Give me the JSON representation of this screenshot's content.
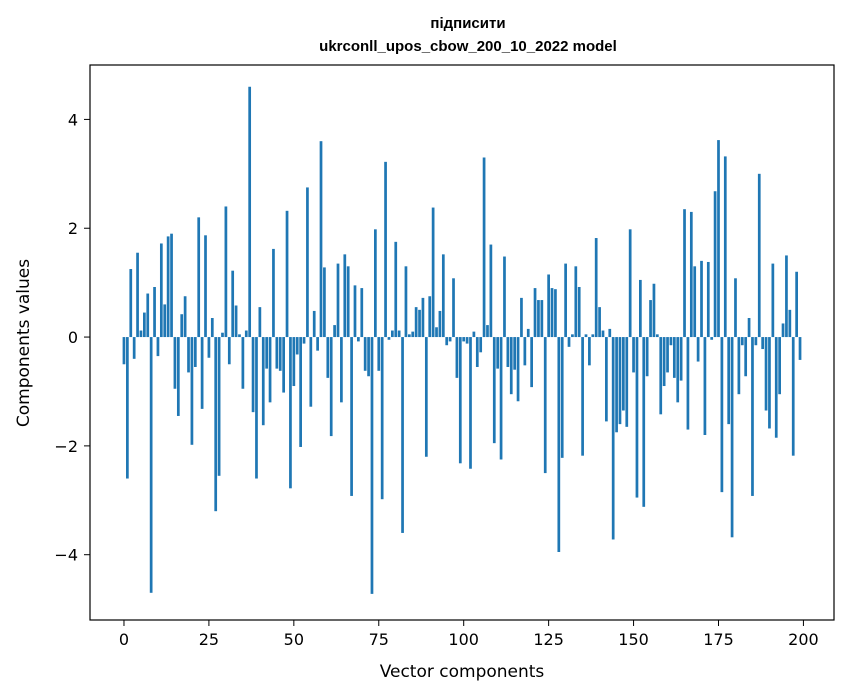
{
  "chart_data": {
    "type": "bar",
    "title_lines": [
      "підписити",
      "ukrconll_upos_cbow_200_10_2022 model"
    ],
    "xlabel": "Vector components",
    "ylabel": "Components values",
    "xlim": [
      -10,
      209
    ],
    "ylim": [
      -5.2,
      5.0
    ],
    "xticks": [
      0,
      25,
      50,
      75,
      100,
      125,
      150,
      175,
      200
    ],
    "xtick_labels": [
      "0",
      "25",
      "50",
      "75",
      "100",
      "125",
      "150",
      "175",
      "200"
    ],
    "yticks": [
      -4,
      -2,
      0,
      2,
      4
    ],
    "ytick_labels": [
      "−4",
      "−2",
      "0",
      "2",
      "4"
    ],
    "bar_color": "#1f77b4",
    "grid": false,
    "x": [
      0,
      1,
      2,
      3,
      4,
      5,
      6,
      7,
      8,
      9,
      10,
      11,
      12,
      13,
      14,
      15,
      16,
      17,
      18,
      19,
      20,
      21,
      22,
      23,
      24,
      25,
      26,
      27,
      28,
      29,
      30,
      31,
      32,
      33,
      34,
      35,
      36,
      37,
      38,
      39,
      40,
      41,
      42,
      43,
      44,
      45,
      46,
      47,
      48,
      49,
      50,
      51,
      52,
      53,
      54,
      55,
      56,
      57,
      58,
      59,
      60,
      61,
      62,
      63,
      64,
      65,
      66,
      67,
      68,
      69,
      70,
      71,
      72,
      73,
      74,
      75,
      76,
      77,
      78,
      79,
      80,
      81,
      82,
      83,
      84,
      85,
      86,
      87,
      88,
      89,
      90,
      91,
      92,
      93,
      94,
      95,
      96,
      97,
      98,
      99,
      100,
      101,
      102,
      103,
      104,
      105,
      106,
      107,
      108,
      109,
      110,
      111,
      112,
      113,
      114,
      115,
      116,
      117,
      118,
      119,
      120,
      121,
      122,
      123,
      124,
      125,
      126,
      127,
      128,
      129,
      130,
      131,
      132,
      133,
      134,
      135,
      136,
      137,
      138,
      139,
      140,
      141,
      142,
      143,
      144,
      145,
      146,
      147,
      148,
      149,
      150,
      151,
      152,
      153,
      154,
      155,
      156,
      157,
      158,
      159,
      160,
      161,
      162,
      163,
      164,
      165,
      166,
      167,
      168,
      169,
      170,
      171,
      172,
      173,
      174,
      175,
      176,
      177,
      178,
      179,
      180,
      181,
      182,
      183,
      184,
      185,
      186,
      187,
      188,
      189,
      190,
      191,
      192,
      193,
      194,
      195,
      196,
      197,
      198,
      199
    ],
    "values": [
      -0.5,
      -2.6,
      1.25,
      -0.4,
      1.55,
      0.12,
      0.45,
      0.8,
      -4.7,
      0.92,
      -0.35,
      1.72,
      0.6,
      1.85,
      1.9,
      -0.95,
      -1.45,
      0.42,
      0.75,
      -0.65,
      -1.98,
      -0.55,
      2.2,
      -1.32,
      1.87,
      -0.38,
      0.35,
      -3.2,
      -2.55,
      0.08,
      2.4,
      -0.5,
      1.22,
      0.58,
      0.05,
      -0.95,
      0.12,
      4.6,
      -1.38,
      -2.6,
      0.55,
      -1.62,
      -0.58,
      -1.2,
      1.62,
      -0.58,
      -0.62,
      -1.02,
      2.32,
      -2.78,
      -0.9,
      -0.32,
      -2.02,
      -0.12,
      2.75,
      -1.28,
      0.48,
      -0.25,
      3.6,
      1.28,
      -0.75,
      -1.82,
      0.22,
      1.35,
      -1.2,
      1.52,
      1.3,
      -2.92,
      0.95,
      -0.08,
      0.9,
      -0.62,
      -0.72,
      -4.72,
      1.98,
      -0.62,
      -2.98,
      3.22,
      -0.05,
      0.12,
      1.75,
      0.12,
      -3.6,
      1.3,
      0.05,
      0.1,
      0.55,
      0.5,
      0.72,
      -2.2,
      0.75,
      2.38,
      0.18,
      0.48,
      1.52,
      -0.15,
      -0.08,
      1.08,
      -0.75,
      -2.32,
      -0.08,
      -0.12,
      -2.42,
      0.1,
      -0.55,
      -0.28,
      3.3,
      0.22,
      1.7,
      -1.95,
      -0.58,
      -2.25,
      1.48,
      -0.55,
      -1.05,
      -0.6,
      -1.18,
      0.72,
      -0.52,
      0.15,
      -0.92,
      0.9,
      0.68,
      0.68,
      -2.5,
      1.15,
      0.9,
      0.88,
      -3.95,
      -2.22,
      1.35,
      -0.18,
      0.05,
      1.3,
      0.92,
      -2.18,
      0.05,
      -0.52,
      0.05,
      1.82,
      0.55,
      0.12,
      -1.55,
      0.15,
      -3.72,
      -1.75,
      -1.6,
      -1.35,
      -1.65,
      1.98,
      -0.65,
      -2.95,
      1.05,
      -3.12,
      -0.72,
      0.68,
      0.98,
      0.05,
      -1.42,
      -0.9,
      -0.65,
      -0.15,
      -0.75,
      -1.2,
      -0.8,
      2.35,
      -1.7,
      2.3,
      1.3,
      -0.45,
      1.4,
      -1.8,
      1.38,
      -0.05,
      2.68,
      3.62,
      -2.85,
      3.32,
      -1.6,
      -3.68,
      1.08,
      -1.05,
      -0.15,
      -0.72,
      0.35,
      -2.92,
      -0.15,
      3.0,
      -0.22,
      -1.35,
      -1.68,
      1.35,
      -1.85,
      -1.05,
      0.25,
      1.5,
      0.5,
      -2.18,
      1.2,
      -0.42
    ]
  }
}
